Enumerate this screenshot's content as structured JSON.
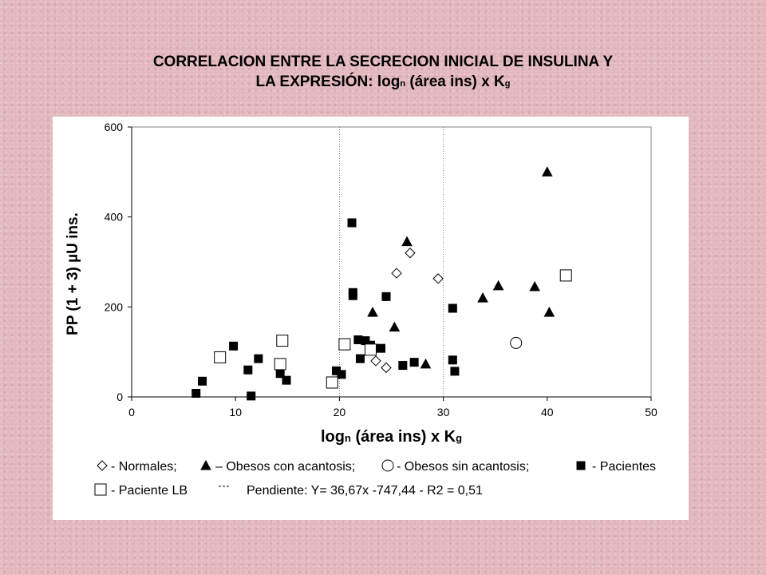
{
  "title_line1": "CORRELACION ENTRE LA SECRECION INICIAL DE INSULINA Y",
  "title_line2_a": "LA EXPRESIÓN: log",
  "title_line2_sub": "n",
  "title_line2_b": " (área ins) x K",
  "title_line2_sub2": "g",
  "chart_data": {
    "type": "scatter",
    "xlim": [
      0,
      50
    ],
    "ylim": [
      0,
      600
    ],
    "xticks": [
      0,
      10,
      20,
      30,
      40,
      50
    ],
    "yticks": [
      0,
      200,
      400,
      600
    ],
    "xlabel": "log",
    "xlabel_sub": "n",
    "xlabel_rest": " (área ins) x K",
    "xlabel_sub2": "g",
    "ylabel": "PP (1 + 3) µU ins.",
    "vertical_reference_lines": [
      20,
      30
    ],
    "series": [
      {
        "name": "Normales",
        "marker": "diamond-open",
        "points": [
          [
            23.5,
            80
          ],
          [
            24.5,
            65
          ],
          [
            25.5,
            275
          ],
          [
            26.8,
            320
          ],
          [
            29.5,
            263
          ]
        ]
      },
      {
        "name": "Obesos con acantosis",
        "marker": "triangle-filled",
        "points": [
          [
            23.2,
            188
          ],
          [
            25.3,
            155
          ],
          [
            26.5,
            345
          ],
          [
            28.3,
            73
          ],
          [
            33.8,
            220
          ],
          [
            35.3,
            247
          ],
          [
            38.8,
            245
          ],
          [
            40.0,
            500
          ],
          [
            40.2,
            188
          ]
        ]
      },
      {
        "name": "Obesos sin acantosis",
        "marker": "circle-open",
        "points": [
          [
            37.0,
            120
          ]
        ]
      },
      {
        "name": "Pacientes",
        "marker": "square-filled",
        "points": [
          [
            6.2,
            8
          ],
          [
            6.8,
            35
          ],
          [
            9.8,
            113
          ],
          [
            11.2,
            60
          ],
          [
            11.5,
            2
          ],
          [
            12.2,
            85
          ],
          [
            14.3,
            52
          ],
          [
            14.9,
            37
          ],
          [
            19.7,
            58
          ],
          [
            20.2,
            50
          ],
          [
            21.2,
            387
          ],
          [
            21.3,
            232
          ],
          [
            21.3,
            225
          ],
          [
            21.8,
            127
          ],
          [
            22.0,
            85
          ],
          [
            22.5,
            125
          ],
          [
            23.0,
            115
          ],
          [
            24.0,
            108
          ],
          [
            24.5,
            223
          ],
          [
            26.1,
            70
          ],
          [
            27.2,
            77
          ],
          [
            30.9,
            197
          ],
          [
            30.9,
            82
          ],
          [
            31.1,
            57
          ]
        ]
      },
      {
        "name": "Paciente LB",
        "marker": "square-open",
        "points": [
          [
            8.5,
            88
          ],
          [
            14.3,
            73
          ],
          [
            14.5,
            125
          ],
          [
            19.3,
            32
          ],
          [
            20.5,
            117
          ],
          [
            23.0,
            105
          ],
          [
            41.8,
            270
          ]
        ]
      }
    ],
    "legend": {
      "row1": [
        {
          "symbol": "◇",
          "text": "- Normales;"
        },
        {
          "symbol": "▲",
          "text": "– Obesos con acantosis;"
        },
        {
          "symbol": "O",
          "text": "- Obesos sin acantosis;"
        },
        {
          "symbol": "■",
          "text": "-  Pacientes"
        }
      ],
      "row2": [
        {
          "symbol": "□",
          "text": "- Paciente LB"
        },
        {
          "symbol": "--",
          "text": "Pendiente:  Y= 36,67x -747,44  -  R2 = 0,51"
        }
      ]
    }
  }
}
